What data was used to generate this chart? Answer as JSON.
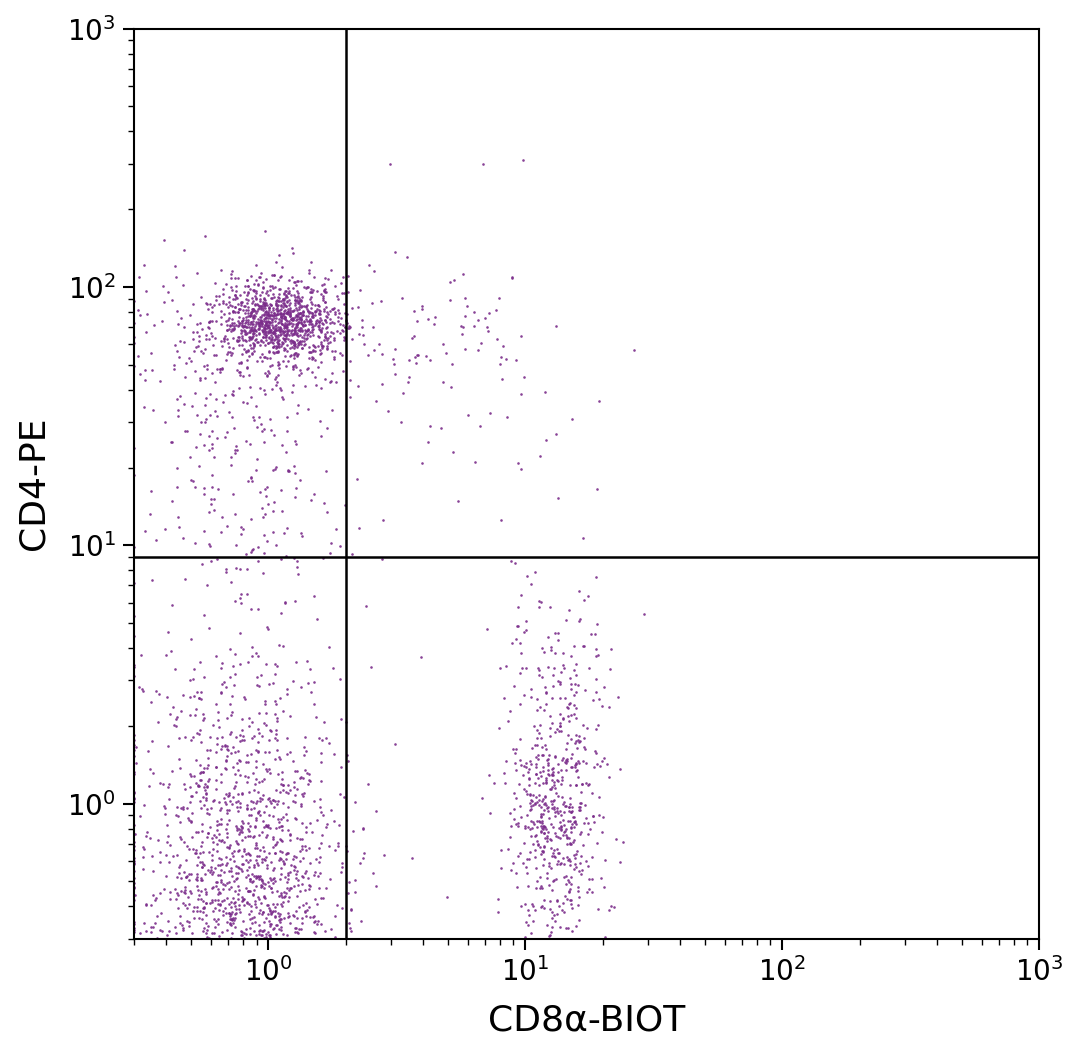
{
  "title": "",
  "xlabel": "CD8α-BIOT",
  "ylabel": "CD4-PE",
  "xlim": [
    0.3,
    1000
  ],
  "ylim": [
    0.3,
    1000
  ],
  "dot_color": "#7B2D8B",
  "dot_size": 3.5,
  "dot_alpha": 0.9,
  "gate_x": 2.0,
  "gate_y": 9.0,
  "background_color": "#ffffff",
  "xlabel_fontsize": 26,
  "ylabel_fontsize": 26,
  "tick_fontsize": 20,
  "clusters": {
    "CD4_single_core": {
      "n": 900,
      "x_log_mean": 0.05,
      "x_log_std": 0.12,
      "y_log_mean": 1.87,
      "y_log_std": 0.07
    },
    "CD4_single_outer": {
      "n": 300,
      "x_log_mean": -0.05,
      "x_log_std": 0.22,
      "y_log_mean": 1.82,
      "y_log_std": 0.15
    },
    "CD4_tail_down": {
      "n": 180,
      "x_log_mean": -0.1,
      "x_log_std": 0.18,
      "y_log_mean": 1.45,
      "y_log_std": 0.28
    },
    "CD4_below_gate": {
      "n": 60,
      "x_log_mean": -0.05,
      "x_log_std": 0.22,
      "y_log_mean": 1.08,
      "y_log_std": 0.15
    },
    "CD8_core": {
      "n": 400,
      "x_log_mean": 1.12,
      "x_log_std": 0.1,
      "y_log_mean": -0.08,
      "y_log_std": 0.35
    },
    "CD8_dense": {
      "n": 200,
      "x_log_mean": 1.1,
      "x_log_std": 0.08,
      "y_log_mean": -0.02,
      "y_log_std": 0.15
    },
    "CD8_high": {
      "n": 80,
      "x_log_mean": 1.15,
      "x_log_std": 0.12,
      "y_log_mean": 0.55,
      "y_log_std": 0.25
    },
    "double_negative_core": {
      "n": 1200,
      "x_log_mean": -0.08,
      "x_log_std": 0.18,
      "y_log_mean": -0.32,
      "y_log_std": 0.38
    },
    "double_negative_spread": {
      "n": 500,
      "x_log_mean": -0.15,
      "x_log_std": 0.28,
      "y_log_mean": -0.18,
      "y_log_std": 0.55
    },
    "double_negative_low": {
      "n": 200,
      "x_log_mean": -0.1,
      "x_log_std": 0.22,
      "y_log_mean": -0.62,
      "y_log_std": 0.2
    },
    "double_positive_sparse": {
      "n": 65,
      "x_log_mean": 0.72,
      "x_log_std": 0.18,
      "y_log_mean": 1.78,
      "y_log_std": 0.15
    },
    "upper_right_scatter": {
      "n": 30,
      "x_log_mean": 0.8,
      "x_log_std": 0.3,
      "y_log_mean": 1.65,
      "y_log_std": 0.25
    },
    "scattered_very_high": {
      "n": 3,
      "x_log_mean": 0.65,
      "x_log_std": 0.2,
      "y_log_mean": 2.53,
      "y_log_std": 0.1
    }
  }
}
